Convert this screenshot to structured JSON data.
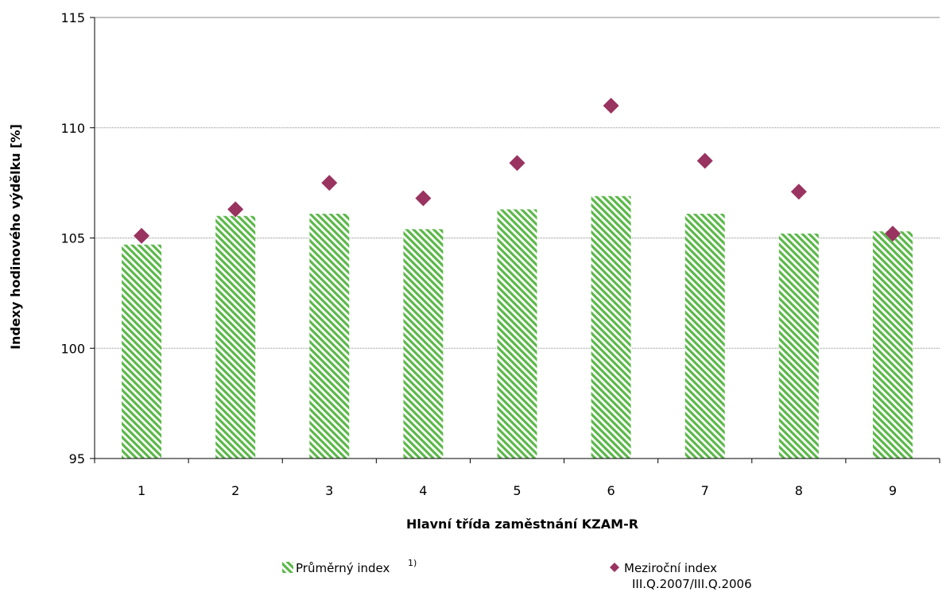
{
  "chart_data": {
    "type": "bar",
    "xlabel": "Hlavní třída zaměstnání KZAM-R",
    "ylabel": "Indexy hodinového výdělku [%]",
    "categories": [
      "1",
      "2",
      "3",
      "4",
      "5",
      "6",
      "7",
      "8",
      "9"
    ],
    "ylim": [
      95,
      115
    ],
    "yticks": [
      95,
      100,
      105,
      110,
      115
    ],
    "grid": true,
    "legend_position": "bottom",
    "series": [
      {
        "name": "Průměrný index",
        "name_superscript": "1)",
        "kind": "bar",
        "pattern": "green-diagonal-hatch",
        "color": "#5cb84a",
        "values": [
          104.7,
          106.0,
          106.1,
          105.4,
          106.3,
          106.9,
          106.1,
          105.2,
          105.3
        ]
      },
      {
        "name": "Meziroční index",
        "name_line2": "III.Q.2007/III.Q.2006",
        "kind": "scatter",
        "marker": "diamond",
        "color": "#99335f",
        "values": [
          105.1,
          106.3,
          107.5,
          106.8,
          108.4,
          111.0,
          108.5,
          107.1,
          105.2
        ]
      }
    ]
  }
}
